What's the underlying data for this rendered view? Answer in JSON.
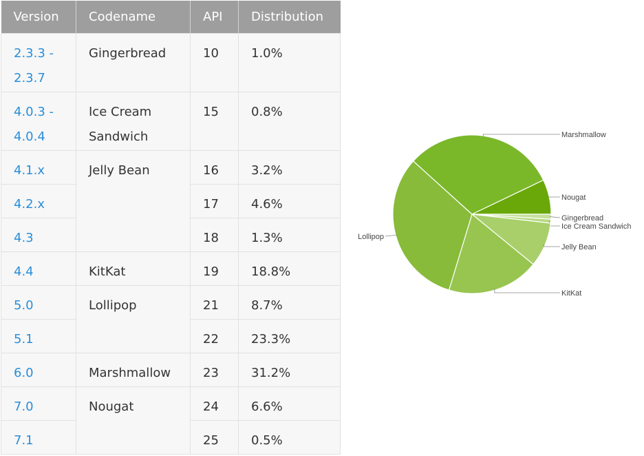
{
  "table": {
    "headers": [
      "Version",
      "Codename",
      "API",
      "Distribution"
    ],
    "rows": [
      {
        "version": "2.3.3 -\n2.3.7",
        "codename": "Gingerbread",
        "api": "10",
        "distribution": "1.0%"
      },
      {
        "version": "4.0.3 -\n4.0.4",
        "codename": "Ice Cream\nSandwich",
        "api": "15",
        "distribution": "0.8%"
      },
      {
        "version": "4.1.x",
        "codename": "Jelly Bean",
        "api": "16",
        "distribution": "3.2%"
      },
      {
        "version": "4.2.x",
        "codename": "",
        "api": "17",
        "distribution": "4.6%"
      },
      {
        "version": "4.3",
        "codename": "",
        "api": "18",
        "distribution": "1.3%"
      },
      {
        "version": "4.4",
        "codename": "KitKat",
        "api": "19",
        "distribution": "18.8%"
      },
      {
        "version": "5.0",
        "codename": "Lollipop",
        "api": "21",
        "distribution": "8.7%"
      },
      {
        "version": "5.1",
        "codename": "",
        "api": "22",
        "distribution": "23.3%"
      },
      {
        "version": "6.0",
        "codename": "Marshmallow",
        "api": "23",
        "distribution": "31.2%"
      },
      {
        "version": "7.0",
        "codename": "Nougat",
        "api": "24",
        "distribution": "6.6%"
      },
      {
        "version": "7.1",
        "codename": "",
        "api": "25",
        "distribution": "0.5%"
      }
    ]
  },
  "chart_data": {
    "type": "pie",
    "title": "",
    "slices": [
      {
        "label": "Nougat",
        "value": 7.1,
        "color": "#6aa80a"
      },
      {
        "label": "Gingerbread",
        "value": 1.0,
        "color": "#c5e09b"
      },
      {
        "label": "Ice Cream Sandwich",
        "value": 0.8,
        "color": "#b7d981"
      },
      {
        "label": "Jelly Bean",
        "value": 9.1,
        "color": "#a8cf6a"
      },
      {
        "label": "KitKat",
        "value": 18.8,
        "color": "#98c550"
      },
      {
        "label": "Lollipop",
        "value": 32.0,
        "color": "#88bb3a"
      },
      {
        "label": "Marshmallow",
        "value": 31.2,
        "color": "#7ab82a"
      }
    ],
    "colors": {
      "label_text": "#444444",
      "leader_line": "#888888",
      "slice_border": "#ffffff"
    }
  }
}
